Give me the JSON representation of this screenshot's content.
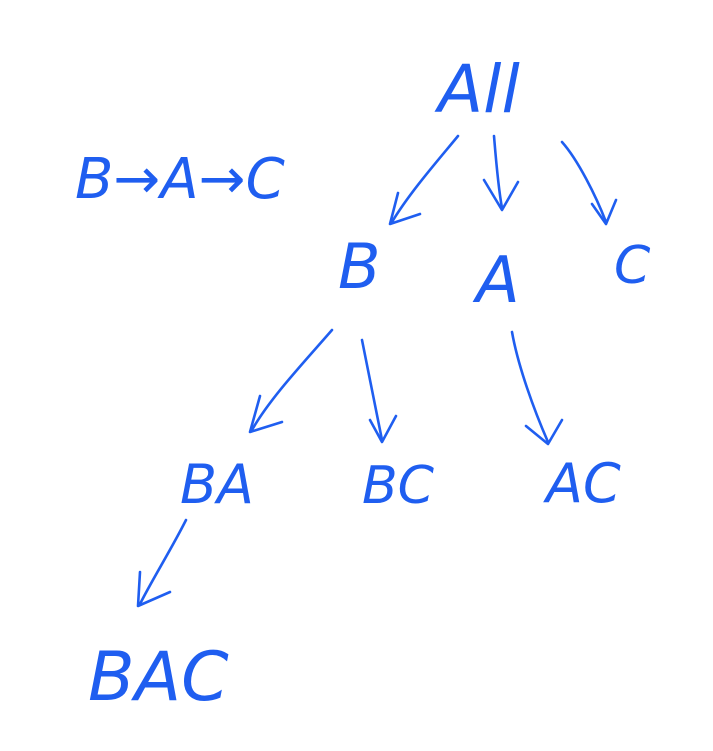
{
  "diagram": {
    "ink_color": "#1f5ef0",
    "background": "#ffffff",
    "order_label": "B→A→C",
    "nodes": {
      "root": "All",
      "b": "B",
      "a": "A",
      "c": "C",
      "ba": "BA",
      "bc": "BC",
      "ac": "AC",
      "bac": "BAC"
    },
    "edges": [
      {
        "from": "root",
        "to": "b"
      },
      {
        "from": "root",
        "to": "a"
      },
      {
        "from": "root",
        "to": "c"
      },
      {
        "from": "b",
        "to": "ba"
      },
      {
        "from": "b",
        "to": "bc"
      },
      {
        "from": "a",
        "to": "ac"
      },
      {
        "from": "ba",
        "to": "bac"
      }
    ]
  }
}
